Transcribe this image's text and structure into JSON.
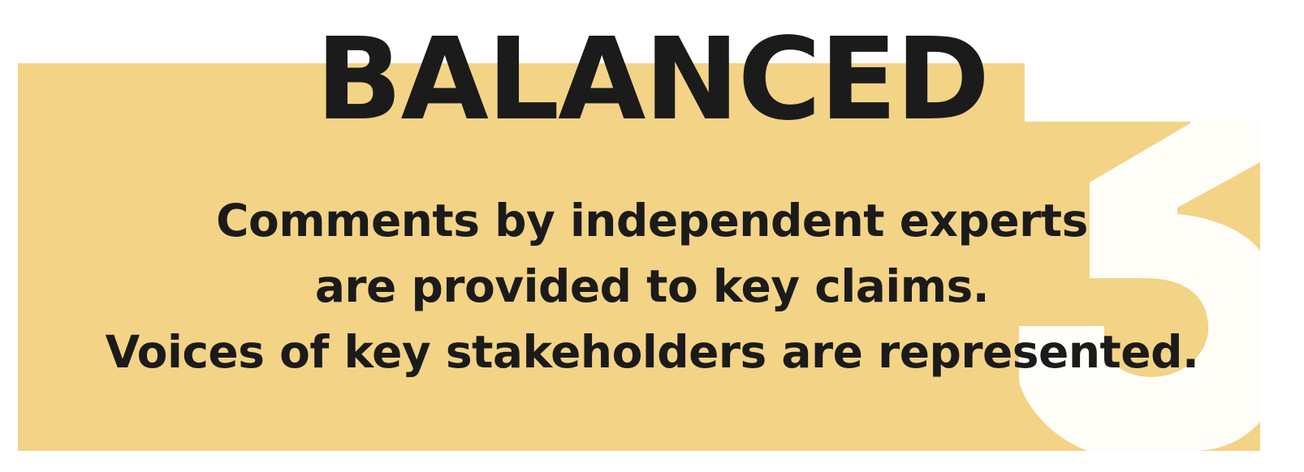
{
  "card": {
    "title": "BALANCED",
    "lines": [
      "Comments by independent experts",
      "are provided to key claims.",
      "Voices of key stakeholders are represented."
    ],
    "decorative_number": "5"
  },
  "colors": {
    "panel": "#f3d386",
    "text": "#1b1b1b",
    "number": "#fffdf8",
    "page": "#ffffff"
  }
}
